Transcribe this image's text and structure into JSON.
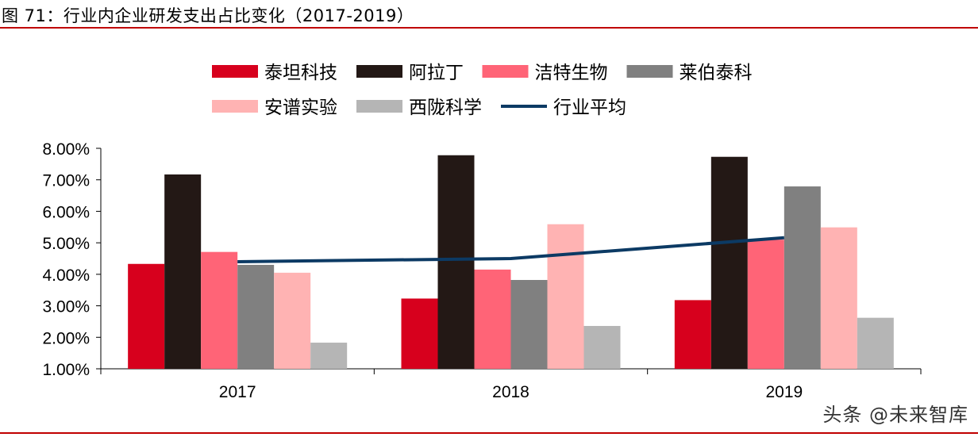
{
  "title": "图 71：行业内企业研发支出占比变化（2017-2019）",
  "watermark": "头条 @未来智库",
  "chart_data": {
    "type": "bar",
    "title": "",
    "xlabel": "",
    "ylabel": "",
    "categories": [
      "2017",
      "2018",
      "2019"
    ],
    "ylim": [
      1,
      8
    ],
    "yticks": [
      "1.00%",
      "2.00%",
      "3.00%",
      "4.00%",
      "5.00%",
      "6.00%",
      "7.00%",
      "8.00%"
    ],
    "series": [
      {
        "name": "泰坦科技",
        "color": "#d7001d",
        "values": [
          4.33,
          3.23,
          3.18
        ]
      },
      {
        "name": "阿拉丁",
        "color": "#231815",
        "values": [
          7.17,
          7.78,
          7.73
        ]
      },
      {
        "name": "洁特生物",
        "color": "#ff6477",
        "values": [
          4.71,
          4.15,
          5.1
        ]
      },
      {
        "name": "莱伯泰科",
        "color": "#808080",
        "values": [
          4.3,
          3.82,
          6.79
        ]
      },
      {
        "name": "安谱实验",
        "color": "#ffb3b3",
        "values": [
          4.05,
          5.59,
          5.49
        ]
      },
      {
        "name": "西陇科学",
        "color": "#b5b5b5",
        "values": [
          1.83,
          2.36,
          2.62
        ]
      }
    ],
    "line": {
      "name": "行业平均",
      "color": "#0c3a64",
      "values": [
        4.4,
        4.5,
        5.16
      ]
    },
    "legend_position": "top",
    "grid": false
  }
}
